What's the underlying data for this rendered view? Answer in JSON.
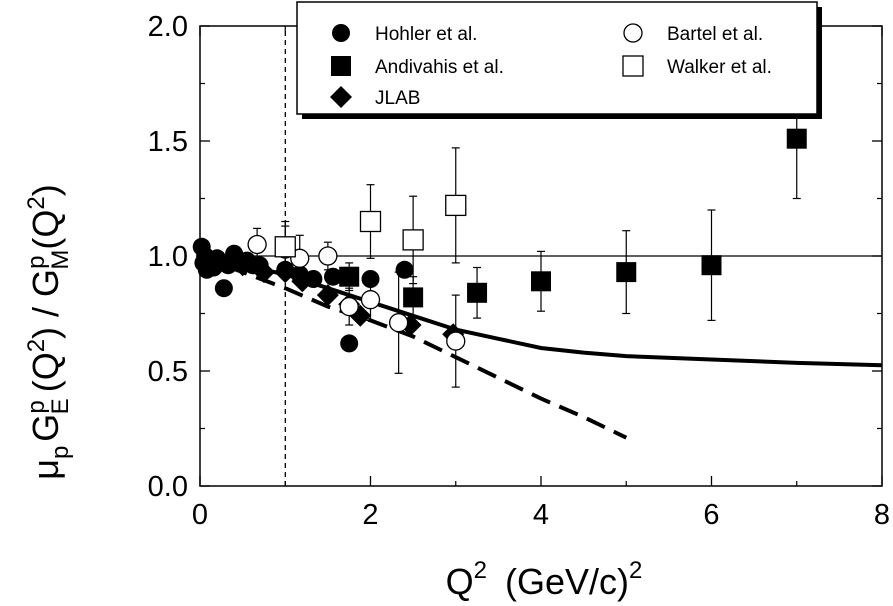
{
  "chart_data": {
    "type": "scatter",
    "xlim": [
      0,
      8
    ],
    "ylim": [
      0,
      2
    ],
    "x_ticks": [
      0,
      2,
      4,
      6,
      8
    ],
    "y_ticks": [
      0,
      0.5,
      1,
      1.5,
      2
    ],
    "x_tick_labels": [
      "0",
      "2",
      "4",
      "6",
      "8"
    ],
    "y_tick_labels": [
      "0.0",
      "0.5",
      "1.0",
      "1.5",
      "2.0"
    ],
    "xlabel": {
      "base": "Q",
      "sup1": "2",
      "unit": "(GeV/c)",
      "sup2": "2"
    },
    "ylabel": {
      "mu": "μ",
      "mu_sub": "p",
      "ge": "G",
      "ge_sup": "p",
      "ge_sub": "E",
      "q1": "(Q",
      "q1_sup": "2",
      "q1_close": ")",
      "slash": " / ",
      "gm": "G",
      "gm_sup": "p",
      "gm_sub": "M",
      "q2": "(Q",
      "q2_sup": "2",
      "q2_close": ")"
    },
    "legend_position": "top-right",
    "series": [
      {
        "name": "Hohler et al.",
        "marker": "filled-circle",
        "points": [
          {
            "x": 0.02,
            "y": 1.04
          },
          {
            "x": 0.04,
            "y": 0.97
          },
          {
            "x": 0.06,
            "y": 1.0
          },
          {
            "x": 0.08,
            "y": 0.94
          },
          {
            "x": 0.12,
            "y": 0.98
          },
          {
            "x": 0.16,
            "y": 0.95
          },
          {
            "x": 0.2,
            "y": 0.99
          },
          {
            "x": 0.28,
            "y": 0.86
          },
          {
            "x": 0.33,
            "y": 0.96
          },
          {
            "x": 0.4,
            "y": 1.01
          },
          {
            "x": 0.47,
            "y": 0.97
          },
          {
            "x": 0.55,
            "y": 0.98
          },
          {
            "x": 0.62,
            "y": 0.96
          },
          {
            "x": 0.7,
            "y": 0.96
          },
          {
            "x": 1.0,
            "y": 0.94
          },
          {
            "x": 1.17,
            "y": 0.92
          },
          {
            "x": 1.33,
            "y": 0.9
          },
          {
            "x": 1.56,
            "y": 0.91
          },
          {
            "x": 1.75,
            "y": 0.62
          },
          {
            "x": 2.0,
            "y": 0.9
          },
          {
            "x": 2.4,
            "y": 0.94
          }
        ]
      },
      {
        "name": "Andivahis et al.",
        "marker": "filled-square",
        "points": [
          {
            "x": 1.75,
            "y": 0.91,
            "err": 0.06
          },
          {
            "x": 2.5,
            "y": 0.82,
            "err": 0.09
          },
          {
            "x": 3.25,
            "y": 0.84,
            "err": 0.11
          },
          {
            "x": 4.0,
            "y": 0.89,
            "err": 0.13
          },
          {
            "x": 5.0,
            "y": 0.93,
            "err": 0.18
          },
          {
            "x": 6.0,
            "y": 0.96,
            "err": 0.24
          },
          {
            "x": 7.0,
            "y": 1.51,
            "err": 0.26
          }
        ]
      },
      {
        "name": "JLAB",
        "marker": "filled-diamond",
        "points": [
          {
            "x": 0.5,
            "y": 0.96
          },
          {
            "x": 0.75,
            "y": 0.93
          },
          {
            "x": 1.0,
            "y": 0.93
          },
          {
            "x": 1.2,
            "y": 0.89
          },
          {
            "x": 1.5,
            "y": 0.83
          },
          {
            "x": 1.75,
            "y": 0.79
          },
          {
            "x": 1.88,
            "y": 0.74
          },
          {
            "x": 2.47,
            "y": 0.7
          },
          {
            "x": 2.97,
            "y": 0.66
          }
        ]
      },
      {
        "name": "Bartel et al.",
        "marker": "open-circle",
        "points": [
          {
            "x": 0.67,
            "y": 1.05,
            "err": 0.07
          },
          {
            "x": 1.0,
            "y": 1.03,
            "err": 0.1
          },
          {
            "x": 1.17,
            "y": 0.99,
            "err": 0.1
          },
          {
            "x": 1.5,
            "y": 1.0,
            "err": 0.06
          },
          {
            "x": 1.75,
            "y": 0.78,
            "err": 0.08
          },
          {
            "x": 2.0,
            "y": 0.81,
            "err": 0.09
          },
          {
            "x": 2.33,
            "y": 0.71,
            "err": 0.22
          },
          {
            "x": 3.0,
            "y": 0.63,
            "err": 0.2
          }
        ]
      },
      {
        "name": "Walker et al.",
        "marker": "open-square",
        "points": [
          {
            "x": 1.0,
            "y": 1.04,
            "err": 0.11
          },
          {
            "x": 2.0,
            "y": 1.15,
            "err": 0.16
          },
          {
            "x": 2.5,
            "y": 1.07,
            "err": 0.19
          },
          {
            "x": 3.0,
            "y": 1.22,
            "err": 0.25
          }
        ]
      }
    ],
    "curves": [
      {
        "style": "solid",
        "points": [
          [
            0,
            1.0
          ],
          [
            0.5,
            0.96
          ],
          [
            1,
            0.92
          ],
          [
            1.5,
            0.86
          ],
          [
            2,
            0.8
          ],
          [
            2.5,
            0.74
          ],
          [
            3,
            0.68
          ],
          [
            3.5,
            0.64
          ],
          [
            4,
            0.6
          ],
          [
            4.5,
            0.58
          ],
          [
            5,
            0.565
          ],
          [
            6,
            0.55
          ],
          [
            7,
            0.535
          ],
          [
            8,
            0.525
          ]
        ]
      },
      {
        "style": "dashed",
        "points": [
          [
            0,
            1.0
          ],
          [
            0.5,
            0.93
          ],
          [
            1,
            0.86
          ],
          [
            1.5,
            0.78
          ],
          [
            2,
            0.72
          ],
          [
            2.5,
            0.65
          ],
          [
            3,
            0.56
          ],
          [
            3.5,
            0.47
          ],
          [
            4,
            0.38
          ],
          [
            4.5,
            0.3
          ],
          [
            5,
            0.21
          ]
        ]
      },
      {
        "style": "thin-solid",
        "points": [
          [
            0,
            1.0
          ],
          [
            8,
            1.0
          ]
        ]
      },
      {
        "style": "thin-dashed",
        "points": [
          [
            1,
            0
          ],
          [
            1,
            2
          ]
        ]
      }
    ]
  }
}
